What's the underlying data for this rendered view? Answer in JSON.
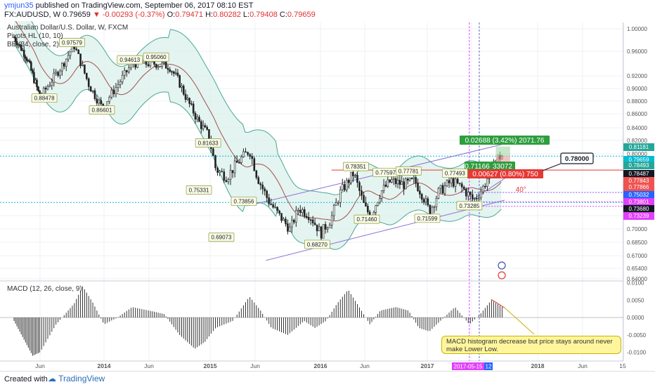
{
  "header": {
    "user": "ymjun35",
    "published": " published on TradingView.com, September 06, 2017 08:10 EST",
    "symbol": "FX:AUDUSD, W",
    "price": "0.79659",
    "change": "▼ -0.00293 (-0.37%)",
    "ohlc_o_label": "O:",
    "ohlc_o": "0.79471",
    "ohlc_h_label": "H:",
    "ohlc_h": "0.80282",
    "ohlc_l_label": "L:",
    "ohlc_l": "0.79408",
    "ohlc_c_label": "C:",
    "ohlc_c": "0.79659"
  },
  "legend": {
    "title": "Australian Dollar/U.S. Dollar, W, FXCM",
    "pivots": "Pivots HL (10, 10)",
    "bb": "BB (34, close, 2)",
    "macd": "MACD (12, 26, close, 9)"
  },
  "annotation": "MACD histogram decrease but price stays around never make Lower Low.",
  "position_box": {
    "profit": "0.02688 (3.42%) 2071.76",
    "entry": "0.71166",
    "entry_tail": "33072",
    "loss": "0.00627 (0.80%) 750"
  },
  "callout": "0.78000",
  "angle_label": "40°",
  "footer": {
    "created": "Created with",
    "brand": "TradingView"
  },
  "colors": {
    "up": "#26a69a",
    "down": "#ef5350",
    "bb_fill": "#d8f0ea",
    "bb_line": "#4aa894",
    "basis": "#a05050",
    "trend": "#8e6fd6",
    "accent": "#2962ff"
  },
  "chart_data": [
    {
      "type": "candlestick",
      "ylim": [
        0.635,
        1.01
      ],
      "y_ticks": [
        "1.00000",
        "0.96000",
        "0.92000",
        "0.90000",
        "0.88000",
        "0.86000",
        "0.84000",
        "0.82000",
        "0.80000",
        "0.72000",
        "0.70000",
        "0.68500",
        "0.67000",
        "0.65400",
        "0.64000"
      ],
      "x_ticks": [
        "Jun",
        "2014",
        "Jun",
        "2015",
        "Jun",
        "2016",
        "Jun",
        "2017",
        "Jun",
        "2018",
        "Jun",
        "15"
      ],
      "x_tick_highlight": "2017-05-15",
      "x_tick_highlight_tail": "12",
      "pivot_labels": [
        {
          "x": 2013.7,
          "value": 0.97579
        },
        {
          "x": 2013.44,
          "value": 0.88478
        },
        {
          "x": 2013.98,
          "value": 0.86601
        },
        {
          "x": 2014.23,
          "value": 0.94613
        },
        {
          "x": 2014.47,
          "value": 0.9506
        },
        {
          "x": 2014.98,
          "value": 0.81633
        },
        {
          "x": 2014.89,
          "value": 0.75331
        },
        {
          "x": 2015.3,
          "value": 0.73856
        },
        {
          "x": 2015.1,
          "value": 0.69073
        },
        {
          "x": 2015.97,
          "value": 0.6827
        },
        {
          "x": 2016.32,
          "value": 0.78351
        },
        {
          "x": 2016.42,
          "value": 0.7146
        },
        {
          "x": 2016.6,
          "value": 0.77597
        },
        {
          "x": 2016.82,
          "value": 0.77781
        },
        {
          "x": 2017.25,
          "value": 0.77493
        },
        {
          "x": 2017.0,
          "value": 0.71599
        },
        {
          "x": 2017.38,
          "value": 0.73285
        }
      ],
      "price_badges": [
        {
          "value": "0.81181",
          "color": "#26a69a"
        },
        {
          "value": "0.79659",
          "color": "#00bcd4"
        },
        {
          "value": "0.78493",
          "color": "#26a69a"
        },
        {
          "value": "0.78487",
          "color": "#131722"
        },
        {
          "value": "0.77843",
          "color": "#ef5350"
        },
        {
          "value": "0.77866",
          "color": "#ef5350"
        },
        {
          "value": "0.75032",
          "color": "#2962ff"
        },
        {
          "value": "0.73801",
          "color": "#e040fb"
        },
        {
          "value": "0.73680",
          "color": "#131722"
        },
        {
          "value": "0.73239",
          "color": "#e040fb"
        }
      ]
    },
    {
      "type": "histogram",
      "title": "MACD (12, 26, close, 9)",
      "ylim": [
        -0.0125,
        0.0105
      ],
      "y_ticks": [
        "0.0100",
        "0.0050",
        "0.0000",
        "-0.0050",
        "-0.0100"
      ]
    }
  ]
}
